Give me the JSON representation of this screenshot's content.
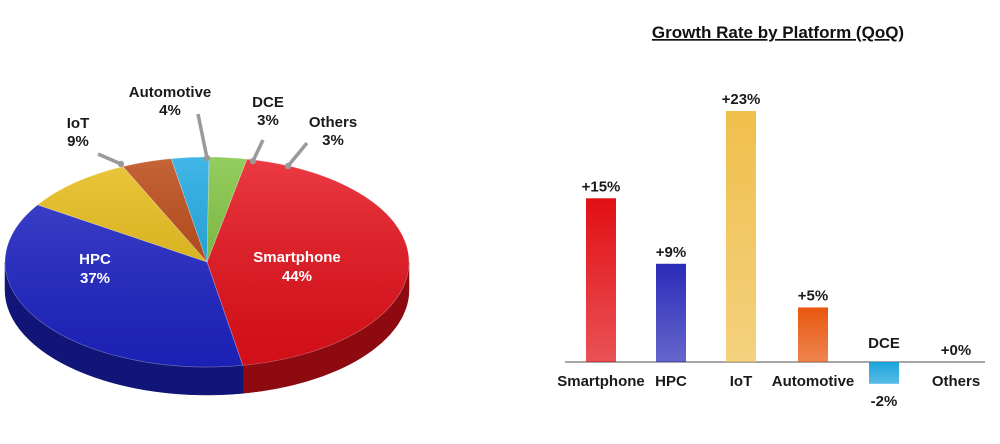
{
  "chart_data": [
    {
      "type": "pie",
      "title": "",
      "three_d": true,
      "slices": [
        {
          "label": "Smartphone",
          "value": 44,
          "value_label": "44%",
          "color": "#e8101a",
          "side_color": "#8c0a10"
        },
        {
          "label": "HPC",
          "value": 37,
          "value_label": "37%",
          "color": "#1e24c8",
          "side_color": "#111577"
        },
        {
          "label": "IoT",
          "value": 9,
          "value_label": "9%",
          "color": "#e7bb12",
          "side_color": "#8f720b"
        },
        {
          "label": "Automotive",
          "value": 4,
          "value_label": "4%",
          "color": "#b8420c",
          "side_color": "#6e2707"
        },
        {
          "label": "DCE",
          "value": 3,
          "value_label": "3%",
          "color": "#18a6e2",
          "side_color": "#0e6388"
        },
        {
          "label": "Others",
          "value": 3,
          "value_label": "3%",
          "color": "#7cc23c",
          "side_color": "#4b7524"
        }
      ]
    },
    {
      "type": "bar",
      "title": "Growth Rate by Platform (QoQ)",
      "categories": [
        "Smartphone",
        "HPC",
        "IoT",
        "Automotive",
        "DCE",
        "Others"
      ],
      "values": [
        15,
        9,
        23,
        5,
        -2,
        0
      ],
      "value_labels": [
        "+15%",
        "+9%",
        "+23%",
        "+5%",
        "-2%",
        "+0%"
      ],
      "colors": [
        "#e10f14",
        "#2a2bb8",
        "#f0bf4c",
        "#e8560d",
        "#1aa4dc",
        "#cccccc"
      ],
      "ylim": [
        -3,
        25
      ],
      "grid": false,
      "xlabel": "",
      "ylabel": ""
    }
  ]
}
